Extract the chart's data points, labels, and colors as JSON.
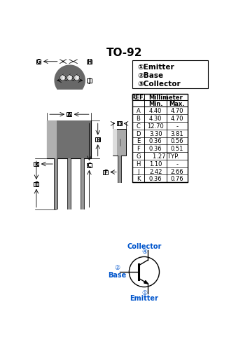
{
  "title": "TO-92",
  "table_data": [
    [
      "A",
      "4.40",
      "4.70"
    ],
    [
      "B",
      "4.30",
      "4.70"
    ],
    [
      "C",
      "12.70",
      "-"
    ],
    [
      "D",
      "3.30",
      "3.81"
    ],
    [
      "E",
      "0.36",
      "0.56"
    ],
    [
      "F",
      "0.36",
      "0.51"
    ],
    [
      "G",
      "1.27 TYP.",
      ""
    ],
    [
      "H",
      "1.10",
      "-"
    ],
    [
      "J",
      "2.42",
      "2.66"
    ],
    [
      "K",
      "0.36",
      "0.76"
    ]
  ],
  "pin_labels": [
    "①Emitter",
    "②Base",
    "③Collector"
  ],
  "bg_color": "#ffffff",
  "text_color": "#000000",
  "blue_color": "#0055cc",
  "body_dark": "#686868",
  "body_mid": "#888888",
  "body_light": "#b0b0b0",
  "lead_color": "#999999",
  "comp_dark": "#aaaaaa",
  "comp_light": "#dddddd"
}
